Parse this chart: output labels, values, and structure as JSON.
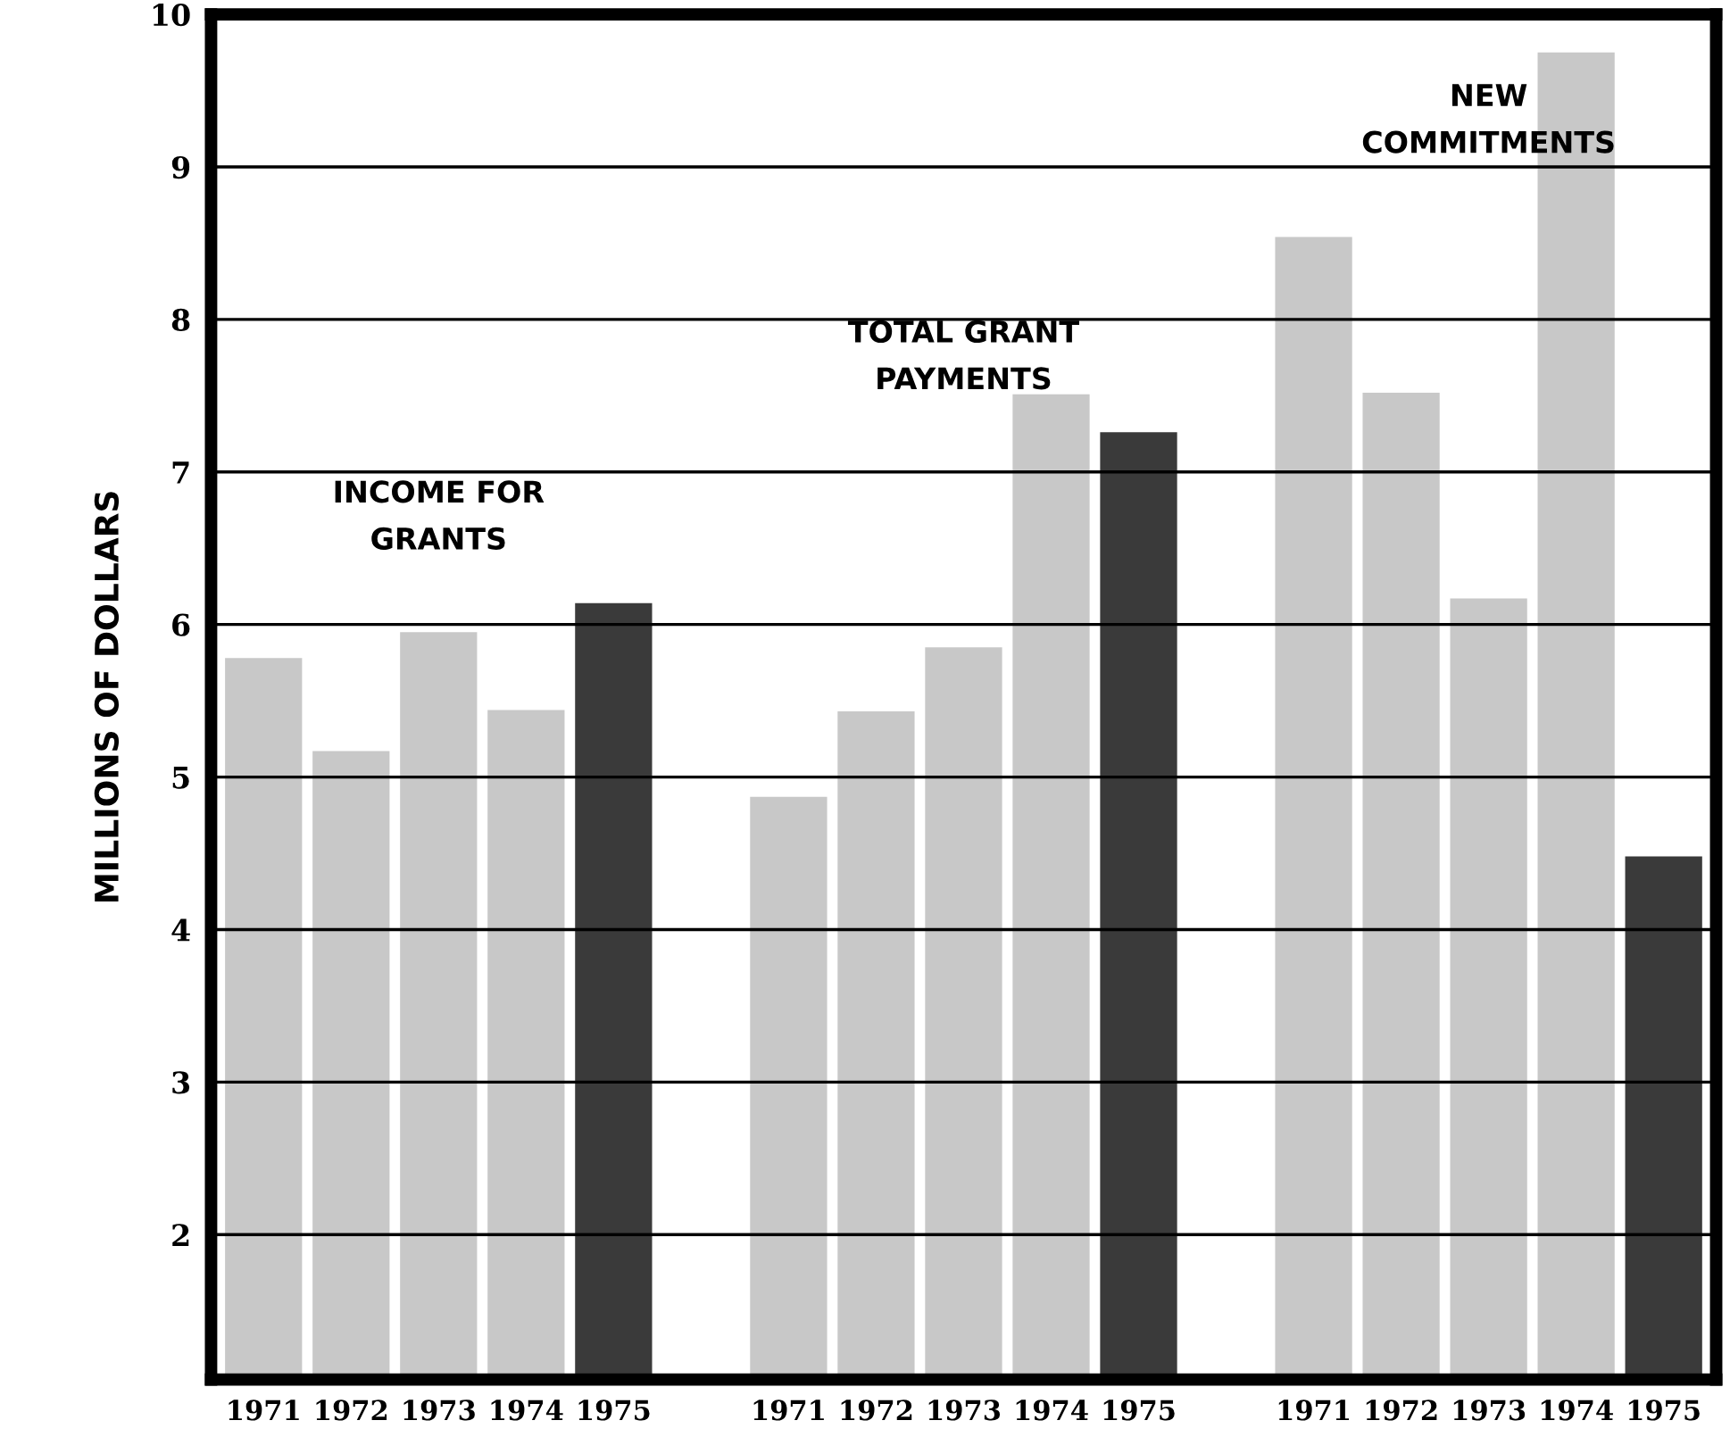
{
  "chart_data": {
    "type": "bar",
    "ylabel": "MILLIONS OF DOLLARS",
    "categories": [
      "1971",
      "1972",
      "1973",
      "1974",
      "1975",
      null,
      "1971",
      "1972",
      "1973",
      "1974",
      "1975",
      null,
      "1971",
      "1972",
      "1973",
      "1974",
      "1975"
    ],
    "values": [
      5.78,
      5.17,
      5.95,
      5.44,
      6.14,
      null,
      4.87,
      5.43,
      5.85,
      7.51,
      7.26,
      null,
      8.54,
      7.52,
      6.17,
      9.75,
      4.48
    ],
    "colors": [
      "#c8c8c8",
      "#c8c8c8",
      "#c8c8c8",
      "#c8c8c8",
      "#3a3a3a",
      null,
      "#c8c8c8",
      "#c8c8c8",
      "#c8c8c8",
      "#c8c8c8",
      "#3a3a3a",
      null,
      "#c8c8c8",
      "#c8c8c8",
      "#c8c8c8",
      "#c8c8c8",
      "#3a3a3a"
    ],
    "annotations": [
      "INCOME FOR\nGRANTS",
      "TOTAL GRANT\nPAYMENTS",
      "NEW\nCOMMITMENTS"
    ],
    "ylim": [
      1.05,
      10
    ],
    "yticks": [
      2,
      3,
      4,
      5,
      6,
      7,
      8,
      9,
      10
    ],
    "grid": "y"
  }
}
